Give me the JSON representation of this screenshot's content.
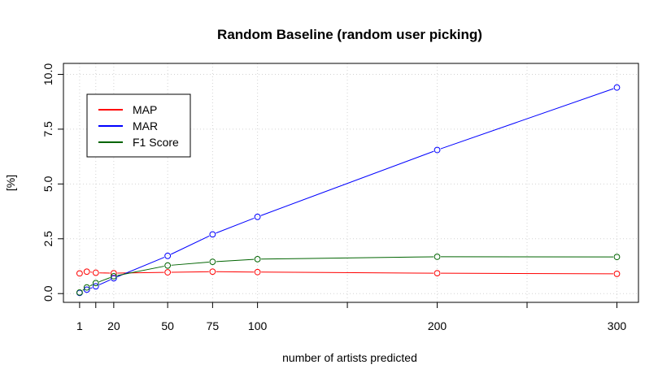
{
  "chart_data": {
    "type": "line",
    "title": "Random Baseline (random user picking)",
    "xlabel": "number of artists predicted",
    "ylabel": "[%]",
    "x": [
      1,
      5,
      10,
      20,
      50,
      75,
      100,
      200,
      300
    ],
    "xticks": [
      1,
      20,
      50,
      75,
      100,
      200,
      300
    ],
    "xtick_marks": [
      1,
      10,
      20,
      50,
      75,
      100,
      150,
      200,
      250,
      300
    ],
    "yticks": [
      0.0,
      2.5,
      5.0,
      7.5,
      10.0
    ],
    "ytick_labels": [
      "0.0",
      "2.5",
      "5.0",
      "7.5",
      "10.0"
    ],
    "xlim": [
      -8,
      312
    ],
    "ylim": [
      -0.4,
      10.5
    ],
    "grid": true,
    "legend_position": "top-left",
    "series": [
      {
        "name": "MAP",
        "color": "#ff0000",
        "values": [
          0.92,
          1.0,
          0.95,
          0.93,
          0.97,
          1.0,
          0.98,
          0.93,
          0.9
        ]
      },
      {
        "name": "MAR",
        "color": "#0000ff",
        "values": [
          0.03,
          0.18,
          0.33,
          0.7,
          1.72,
          2.7,
          3.5,
          6.55,
          9.4
        ]
      },
      {
        "name": "F1 Score",
        "color": "#006400",
        "values": [
          0.05,
          0.28,
          0.48,
          0.79,
          1.28,
          1.45,
          1.57,
          1.68,
          1.67
        ]
      }
    ]
  }
}
